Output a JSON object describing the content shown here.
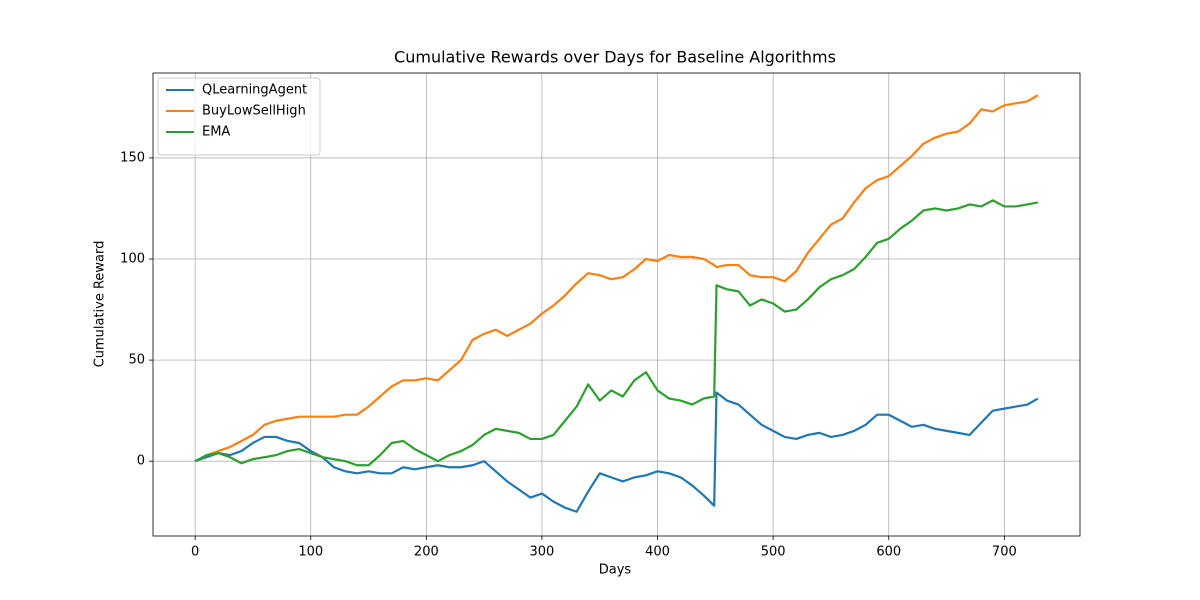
{
  "chart_data": {
    "type": "line",
    "title": "Cumulative Rewards over Days for Baseline Algorithms",
    "xlabel": "Days",
    "ylabel": "Cumulative Reward",
    "x": [
      0,
      10,
      20,
      30,
      40,
      50,
      60,
      70,
      80,
      90,
      100,
      110,
      120,
      130,
      140,
      150,
      160,
      170,
      180,
      190,
      200,
      210,
      220,
      230,
      240,
      250,
      260,
      270,
      280,
      290,
      300,
      310,
      320,
      330,
      340,
      350,
      360,
      370,
      380,
      390,
      400,
      410,
      420,
      430,
      440,
      449,
      451,
      460,
      470,
      480,
      490,
      500,
      510,
      520,
      530,
      540,
      550,
      560,
      570,
      580,
      590,
      600,
      610,
      620,
      630,
      640,
      650,
      660,
      670,
      680,
      690,
      700,
      710,
      720,
      729
    ],
    "series": [
      {
        "name": "QLearningAgent",
        "color": "#1f77b4",
        "values": [
          0,
          2,
          4,
          3,
          5,
          9,
          12,
          12,
          10,
          9,
          5,
          2,
          -3,
          -5,
          -6,
          -5,
          -6,
          -6,
          -3,
          -4,
          -3,
          -2,
          -3,
          -3,
          -2,
          0,
          -5,
          -10,
          -14,
          -18,
          -16,
          -20,
          -23,
          -25,
          -15,
          -6,
          -8,
          -10,
          -8,
          -7,
          -5,
          -6,
          -8,
          -12,
          -17,
          -22,
          34,
          30,
          28,
          23,
          18,
          15,
          12,
          11,
          13,
          14,
          12,
          13,
          15,
          18,
          23,
          23,
          20,
          17,
          18,
          16,
          15,
          14,
          13,
          19,
          25,
          26,
          27,
          28,
          31
        ]
      },
      {
        "name": "BuyLowSellHigh",
        "color": "#ff7f0e",
        "values": [
          0,
          3,
          5,
          7,
          10,
          13,
          18,
          20,
          21,
          22,
          22,
          22,
          22,
          23,
          23,
          27,
          32,
          37,
          40,
          40,
          41,
          40,
          45,
          50,
          60,
          63,
          65,
          62,
          65,
          68,
          73,
          77,
          82,
          88,
          93,
          92,
          90,
          91,
          95,
          100,
          99,
          102,
          101,
          101,
          100,
          97,
          96,
          97,
          97,
          92,
          91,
          91,
          89,
          94,
          103,
          110,
          117,
          120,
          128,
          135,
          139,
          141,
          146,
          151,
          157,
          160,
          162,
          163,
          167,
          174,
          173,
          176,
          177,
          178,
          181
        ]
      },
      {
        "name": "EMA",
        "color": "#2ca02c",
        "values": [
          0,
          3,
          4,
          2,
          -1,
          1,
          2,
          3,
          5,
          6,
          4,
          2,
          1,
          0,
          -2,
          -2,
          3,
          9,
          10,
          6,
          3,
          0,
          3,
          5,
          8,
          13,
          16,
          15,
          14,
          11,
          11,
          13,
          20,
          27,
          38,
          30,
          35,
          32,
          40,
          44,
          35,
          31,
          30,
          28,
          31,
          32,
          87,
          85,
          84,
          77,
          80,
          78,
          74,
          75,
          80,
          86,
          90,
          92,
          95,
          101,
          108,
          110,
          115,
          119,
          124,
          125,
          124,
          125,
          127,
          126,
          129,
          126,
          126,
          127,
          128
        ]
      }
    ],
    "xlim": [
      -36.45,
      765.45
    ],
    "xticks": [
      0,
      100,
      200,
      300,
      400,
      500,
      600,
      700
    ],
    "ylim": [
      -37,
      192
    ],
    "yticks": [
      0,
      50,
      100,
      150
    ],
    "grid": true,
    "legend": "upper left"
  }
}
